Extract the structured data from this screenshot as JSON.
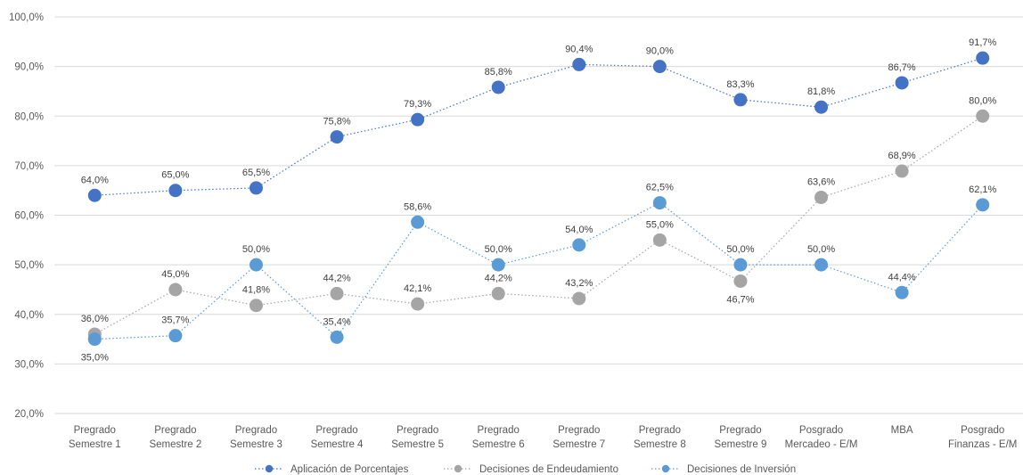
{
  "chart_data": {
    "type": "line",
    "categories": [
      [
        "Pregrado",
        "Semestre 1"
      ],
      [
        "Pregrado",
        "Semestre 2"
      ],
      [
        "Pregrado",
        "Semestre 3"
      ],
      [
        "Pregrado",
        "Semestre 4"
      ],
      [
        "Pregrado",
        "Semestre 5"
      ],
      [
        "Pregrado",
        "Semestre 6"
      ],
      [
        "Pregrado",
        "Semestre 7"
      ],
      [
        "Pregrado",
        "Semestre 8"
      ],
      [
        "Pregrado",
        "Semestre 9"
      ],
      [
        "Posgrado",
        "Mercadeo - E/M"
      ],
      [
        "MBA"
      ],
      [
        "Posgrado",
        "Finanzas - E/M"
      ]
    ],
    "ylim": [
      20,
      100
    ],
    "yticks": [
      "20,0%",
      "30,0%",
      "40,0%",
      "50,0%",
      "60,0%",
      "70,0%",
      "80,0%",
      "90,0%",
      "100,0%"
    ],
    "ytick_values": [
      20,
      30,
      40,
      50,
      60,
      70,
      80,
      90,
      100
    ],
    "grid": true,
    "legend_position": "bottom",
    "series": [
      {
        "name": "Aplicación de Porcentajes",
        "color": "#4472C4",
        "values": [
          64.0,
          65.0,
          65.5,
          75.8,
          79.3,
          85.8,
          90.4,
          90.0,
          83.3,
          81.8,
          86.7,
          91.7
        ],
        "labels": [
          "64,0%",
          "65,0%",
          "65,5%",
          "75,8%",
          "79,3%",
          "85,8%",
          "90,4%",
          "90,0%",
          "83,3%",
          "81,8%",
          "86,7%",
          "91,7%"
        ],
        "label_side": [
          "above",
          "above",
          "above",
          "above",
          "above",
          "above",
          "above",
          "above",
          "above",
          "above",
          "above",
          "above"
        ]
      },
      {
        "name": "Decisiones de Endeudamiento",
        "color": "#A5A5A5",
        "values": [
          36.0,
          45.0,
          41.8,
          44.2,
          42.1,
          44.2,
          43.2,
          55.0,
          46.7,
          63.6,
          68.9,
          80.0
        ],
        "labels": [
          "36,0%",
          "45,0%",
          "41,8%",
          "44,2%",
          "42,1%",
          "44,2%",
          "43,2%",
          "55,0%",
          "46,7%",
          "63,6%",
          "68,9%",
          "80,0%"
        ],
        "label_side": [
          "above",
          "above",
          "above",
          "above",
          "above",
          "above",
          "above",
          "above",
          "below",
          "above",
          "above",
          "above"
        ]
      },
      {
        "name": "Decisiones de Inversión",
        "color": "#5B9BD5",
        "values": [
          35.0,
          35.7,
          50.0,
          35.4,
          58.6,
          50.0,
          54.0,
          62.5,
          50.0,
          50.0,
          44.4,
          62.1
        ],
        "labels": [
          "35,0%",
          "35,7%",
          "50,0%",
          "35,4%",
          "58,6%",
          "50,0%",
          "54,0%",
          "62,5%",
          "50,0%",
          "50,0%",
          "44,4%",
          "62,1%"
        ],
        "label_side": [
          "below",
          "above",
          "above",
          "above",
          "above",
          "above",
          "above",
          "above",
          "above",
          "above",
          "above",
          "above"
        ]
      }
    ]
  }
}
